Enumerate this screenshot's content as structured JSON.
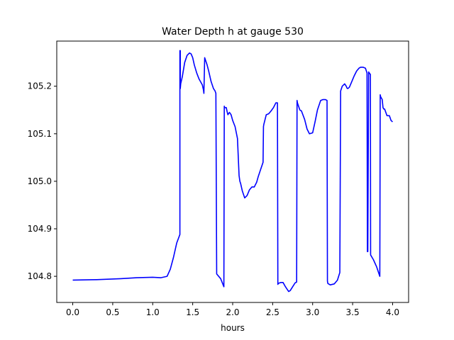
{
  "chart_data": {
    "type": "line",
    "title": "Water Depth h at gauge 530",
    "xlabel": "hours",
    "ylabel": "",
    "xlim": [
      -0.2,
      4.2
    ],
    "ylim": [
      104.745,
      105.295
    ],
    "xticks": [
      0.0,
      0.5,
      1.0,
      1.5,
      2.0,
      2.5,
      3.0,
      3.5,
      4.0
    ],
    "xtick_labels": [
      "0.0",
      "0.5",
      "1.0",
      "1.5",
      "2.0",
      "2.5",
      "3.0",
      "3.5",
      "4.0"
    ],
    "yticks": [
      104.8,
      104.9,
      105.0,
      105.1,
      105.2
    ],
    "ytick_labels": [
      "104.8",
      "104.9",
      "105.0",
      "105.1",
      "105.2"
    ],
    "grid": false,
    "series": [
      {
        "color": "#0000ff",
        "x": [
          0.0,
          0.3,
          0.6,
          0.8,
          1.0,
          1.1,
          1.18,
          1.22,
          1.26,
          1.3,
          1.34,
          1.34,
          1.345,
          1.345,
          1.35,
          1.37,
          1.4,
          1.43,
          1.46,
          1.48,
          1.5,
          1.52,
          1.55,
          1.58,
          1.62,
          1.635,
          1.64,
          1.65,
          1.68,
          1.7,
          1.73,
          1.76,
          1.78,
          1.79,
          1.8,
          1.85,
          1.89,
          1.895,
          1.9,
          1.92,
          1.93,
          1.94,
          1.96,
          1.98,
          2.0,
          2.03,
          2.06,
          2.08,
          2.09,
          2.1,
          2.12,
          2.15,
          2.18,
          2.21,
          2.24,
          2.27,
          2.3,
          2.32,
          2.35,
          2.38,
          2.385,
          2.39,
          2.42,
          2.45,
          2.48,
          2.51,
          2.54,
          2.56,
          2.565,
          2.57,
          2.6,
          2.63,
          2.66,
          2.7,
          2.72,
          2.75,
          2.78,
          2.8,
          2.805,
          2.81,
          2.84,
          2.86,
          2.9,
          2.93,
          2.96,
          3.0,
          3.03,
          3.06,
          3.1,
          3.13,
          3.16,
          3.18,
          3.185,
          3.19,
          3.22,
          3.27,
          3.31,
          3.34,
          3.35,
          3.37,
          3.4,
          3.42,
          3.43,
          3.44,
          3.46,
          3.49,
          3.52,
          3.55,
          3.58,
          3.6,
          3.63,
          3.66,
          3.68,
          3.685,
          3.69,
          3.7,
          3.72,
          3.722,
          3.725,
          3.76,
          3.8,
          3.84,
          3.845,
          3.85,
          3.87,
          3.88,
          3.89,
          3.9,
          3.93,
          3.96,
          3.98,
          4.0
        ],
        "y": [
          104.792,
          104.793,
          104.795,
          104.797,
          104.798,
          104.797,
          104.8,
          104.815,
          104.84,
          104.87,
          104.888,
          105.275,
          105.275,
          105.195,
          105.205,
          105.22,
          105.25,
          105.265,
          105.27,
          105.268,
          105.26,
          105.245,
          105.228,
          105.215,
          105.203,
          105.192,
          105.185,
          105.26,
          105.245,
          105.232,
          105.21,
          105.195,
          105.19,
          105.185,
          104.805,
          104.795,
          104.778,
          105.158,
          105.155,
          105.155,
          105.147,
          105.14,
          105.145,
          105.14,
          105.128,
          105.115,
          105.09,
          105.012,
          105.0,
          104.995,
          104.98,
          104.965,
          104.97,
          104.982,
          104.988,
          104.988,
          104.998,
          105.01,
          105.025,
          105.04,
          105.115,
          105.12,
          105.14,
          105.142,
          105.148,
          105.155,
          105.165,
          105.165,
          104.783,
          104.785,
          104.787,
          104.787,
          104.778,
          104.768,
          104.77,
          104.778,
          104.786,
          104.788,
          105.17,
          105.165,
          105.15,
          105.148,
          105.13,
          105.11,
          105.1,
          105.102,
          105.125,
          105.15,
          105.17,
          105.172,
          105.172,
          105.17,
          104.79,
          104.785,
          104.782,
          104.784,
          104.792,
          104.808,
          105.19,
          105.2,
          105.205,
          105.2,
          105.196,
          105.195,
          105.198,
          105.21,
          105.222,
          105.232,
          105.238,
          105.24,
          105.24,
          105.238,
          105.228,
          104.852,
          104.852,
          105.23,
          105.225,
          105.225,
          104.845,
          104.835,
          104.82,
          104.8,
          105.182,
          105.178,
          105.172,
          105.155,
          105.152,
          105.152,
          105.138,
          105.138,
          105.128,
          105.125
        ]
      }
    ]
  }
}
